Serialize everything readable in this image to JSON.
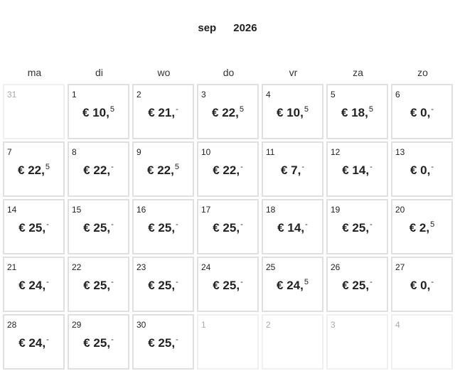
{
  "header": {
    "month": "sep",
    "year": "2026"
  },
  "weekdays": [
    "ma",
    "di",
    "wo",
    "do",
    "vr",
    "za",
    "zo"
  ],
  "days": [
    {
      "d": "31",
      "out": true
    },
    {
      "d": "1",
      "p": "€ 10,",
      "s": "5"
    },
    {
      "d": "2",
      "p": "€ 21,",
      "s": "-"
    },
    {
      "d": "3",
      "p": "€ 22,",
      "s": "5"
    },
    {
      "d": "4",
      "p": "€ 10,",
      "s": "5"
    },
    {
      "d": "5",
      "p": "€ 18,",
      "s": "5"
    },
    {
      "d": "6",
      "p": "€ 0,",
      "s": "-"
    },
    {
      "d": "7",
      "p": "€ 22,",
      "s": "5"
    },
    {
      "d": "8",
      "p": "€ 22,",
      "s": "-"
    },
    {
      "d": "9",
      "p": "€ 22,",
      "s": "5"
    },
    {
      "d": "10",
      "p": "€ 22,",
      "s": "-"
    },
    {
      "d": "11",
      "p": "€ 7,",
      "s": "-"
    },
    {
      "d": "12",
      "p": "€ 14,",
      "s": "-"
    },
    {
      "d": "13",
      "p": "€ 0,",
      "s": "-"
    },
    {
      "d": "14",
      "p": "€ 25,",
      "s": "-"
    },
    {
      "d": "15",
      "p": "€ 25,",
      "s": "-"
    },
    {
      "d": "16",
      "p": "€ 25,",
      "s": "-"
    },
    {
      "d": "17",
      "p": "€ 25,",
      "s": "-"
    },
    {
      "d": "18",
      "p": "€ 14,",
      "s": "-"
    },
    {
      "d": "19",
      "p": "€ 25,",
      "s": "-"
    },
    {
      "d": "20",
      "p": "€ 2,",
      "s": "5"
    },
    {
      "d": "21",
      "p": "€ 24,",
      "s": "-"
    },
    {
      "d": "22",
      "p": "€ 25,",
      "s": "-"
    },
    {
      "d": "23",
      "p": "€ 25,",
      "s": "-"
    },
    {
      "d": "24",
      "p": "€ 25,",
      "s": "-"
    },
    {
      "d": "25",
      "p": "€ 24,",
      "s": "5"
    },
    {
      "d": "26",
      "p": "€ 25,",
      "s": "-"
    },
    {
      "d": "27",
      "p": "€ 0,",
      "s": "-"
    },
    {
      "d": "28",
      "p": "€ 24,",
      "s": "-"
    },
    {
      "d": "29",
      "p": "€ 25,",
      "s": "-"
    },
    {
      "d": "30",
      "p": "€ 25,",
      "s": "-"
    },
    {
      "d": "1",
      "out": true
    },
    {
      "d": "2",
      "out": true
    },
    {
      "d": "3",
      "out": true
    },
    {
      "d": "4",
      "out": true
    }
  ]
}
